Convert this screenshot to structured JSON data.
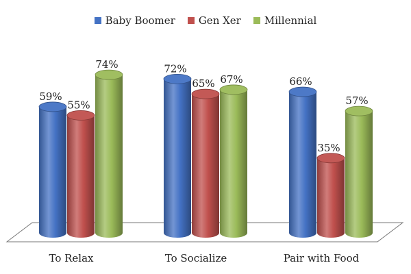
{
  "chart_data": {
    "type": "bar",
    "categories": [
      "To Relax",
      "To Socialize",
      "Pair with Food"
    ],
    "series": [
      {
        "name": "Baby Boomer",
        "values": [
          59,
          72,
          66
        ],
        "color": "#4472C4",
        "labels": [
          "59%",
          "72%",
          "66%"
        ]
      },
      {
        "name": "Gen Xer",
        "values": [
          55,
          65,
          35
        ],
        "color": "#C0504D",
        "labels": [
          "55%",
          "65%",
          "35%"
        ]
      },
      {
        "name": "Millennial",
        "values": [
          74,
          67,
          57
        ],
        "color": "#9BBB59",
        "labels": [
          "74%",
          "67%",
          "57%"
        ]
      }
    ],
    "title": "",
    "xlabel": "",
    "ylabel": "",
    "ylim": [
      0,
      100
    ],
    "grid": false,
    "legend": "top-center",
    "style": "3d-cylinder"
  }
}
